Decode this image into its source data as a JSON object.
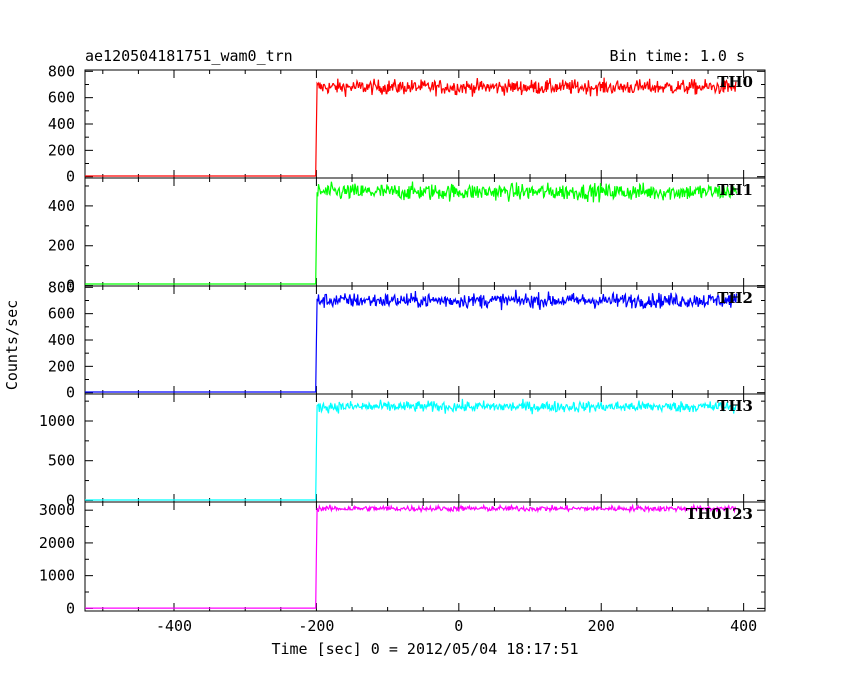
{
  "header": {
    "title": "ae120504181751_wam0_trn",
    "bin_time": "Bin time: 1.0 s"
  },
  "axes": {
    "ylabel": "Counts/sec",
    "xlabel": "Time [sec] 0 = 2012/05/04 18:17:51"
  },
  "chart_data": {
    "type": "line",
    "title": "ae120504181751_wam0_trn",
    "xlabel": "Time [sec] 0 = 2012/05/04 18:17:51",
    "ylabel": "Counts/sec",
    "xlim": [
      -525,
      430
    ],
    "xticks": [
      -400,
      -200,
      0,
      200,
      400
    ],
    "grid": false,
    "series": [
      {
        "name": "TH0",
        "color": "#ff0000",
        "ylim": [
          -10,
          810
        ],
        "yticks": [
          0,
          200,
          400,
          600,
          800
        ],
        "x": [
          -525,
          -200,
          -199,
          390
        ],
        "baseline": 5,
        "level": 680,
        "noise": 40
      },
      {
        "name": "TH1",
        "color": "#00ff00",
        "ylim": [
          -2,
          540
        ],
        "yticks": [
          0,
          200,
          400
        ],
        "x": [
          -525,
          -200,
          -199,
          390
        ],
        "baseline": 8,
        "level": 470,
        "noise": 30
      },
      {
        "name": "TH2",
        "color": "#0000ff",
        "ylim": [
          -10,
          810
        ],
        "yticks": [
          0,
          200,
          400,
          600,
          800
        ],
        "x": [
          -525,
          -200,
          -199,
          390
        ],
        "baseline": 5,
        "level": 700,
        "noise": 40
      },
      {
        "name": "TH3",
        "color": "#00ffff",
        "ylim": [
          -20,
          1340
        ],
        "yticks": [
          0,
          500,
          1000
        ],
        "x": [
          -525,
          -200,
          -199,
          390
        ],
        "baseline": 5,
        "level": 1180,
        "noise": 50
      },
      {
        "name": "TH0123",
        "color": "#ff00ff",
        "ylim": [
          -80,
          3250
        ],
        "yticks": [
          0,
          1000,
          2000,
          3000
        ],
        "x": [
          -525,
          -200,
          -199,
          390
        ],
        "baseline": 10,
        "level": 3050,
        "noise": 60
      }
    ]
  }
}
